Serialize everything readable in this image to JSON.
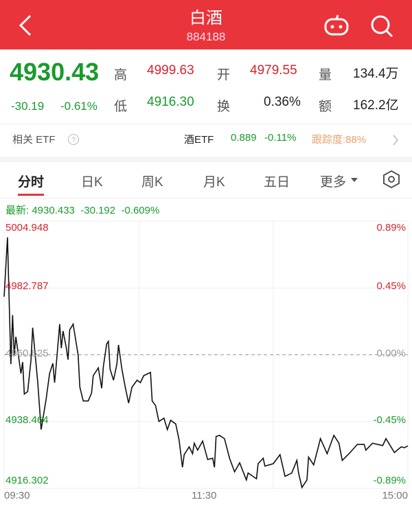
{
  "header": {
    "title": "白酒",
    "code": "884188",
    "back_icon": "chevron-left-icon",
    "robot_icon": "robot-icon",
    "search_icon": "search-icon",
    "color": "#e9343b"
  },
  "quote": {
    "price": "4930.43",
    "change": "-30.19",
    "change_pct": "-0.61%",
    "high_label": "高",
    "high": "4999.63",
    "open_label": "开",
    "open": "4979.55",
    "volume_label": "量",
    "volume": "134.4万",
    "low_label": "低",
    "low": "4916.30",
    "turnover_label": "换",
    "turnover": "0.36%",
    "amount_label": "额",
    "amount": "162.2亿"
  },
  "etf": {
    "label": "相关 ETF",
    "name": "酒ETF",
    "price": "0.889",
    "change": "-0.11%",
    "tracking": "跟踪度:88%"
  },
  "tabs": [
    {
      "label": "分时",
      "active": true
    },
    {
      "label": "日K"
    },
    {
      "label": "周K"
    },
    {
      "label": "月K"
    },
    {
      "label": "五日"
    },
    {
      "label": "更多"
    }
  ],
  "latest": "最新: 4930.433  -30.192  -0.609%",
  "chart_data": {
    "type": "line",
    "y_left_ticks": [
      "5004.948",
      "4982.787",
      "4960.625",
      "4938.464",
      "4916.302"
    ],
    "y_right_ticks": [
      "0.89%",
      "0.45%",
      "0.00%",
      "-0.45%",
      "-0.89%"
    ],
    "x_ticks": [
      "09:30",
      "11:30",
      "15:00"
    ],
    "ylim": [
      4916.302,
      5004.948
    ],
    "prev_close": 4960.625,
    "colors": {
      "up": "#d6242e",
      "down": "#1a9a2e",
      "line": "#111111"
    },
    "x": [
      "09:30",
      "09:32",
      "09:34",
      "09:35",
      "09:36",
      "09:37",
      "09:40",
      "09:41",
      "09:42",
      "09:44",
      "09:46",
      "09:47",
      "09:50",
      "09:52",
      "09:55",
      "09:57",
      "09:59",
      "10:00",
      "10:01",
      "10:03",
      "10:04",
      "10:05",
      "10:07",
      "10:08",
      "10:09",
      "10:11",
      "10:14",
      "10:15",
      "10:17",
      "10:20",
      "10:22",
      "10:23",
      "10:26",
      "10:28",
      "10:29",
      "10:31",
      "10:32",
      "10:33",
      "10:35",
      "10:37",
      "10:38",
      "10:40",
      "10:42",
      "10:44",
      "10:46",
      "10:49",
      "10:51",
      "10:53",
      "10:57",
      "10:58",
      "11:00",
      "11:02",
      "11:05",
      "11:07",
      "11:09",
      "11:12",
      "11:14",
      "11:16",
      "11:17",
      "11:20",
      "11:22",
      "11:23",
      "11:25",
      "11:28",
      "13:01",
      "13:04",
      "13:05",
      "13:06",
      "13:08",
      "13:11",
      "13:14",
      "13:17",
      "13:20",
      "13:24",
      "13:25",
      "13:30",
      "13:31",
      "13:34",
      "13:35",
      "13:40",
      "13:44",
      "13:47",
      "13:51",
      "13:54",
      "13:55",
      "13:57",
      "14:00",
      "14:01",
      "14:04",
      "14:07",
      "14:08",
      "14:12",
      "14:16",
      "14:19",
      "14:21",
      "14:25",
      "14:30",
      "14:34",
      "14:35",
      "14:39",
      "14:45",
      "14:47",
      "14:52",
      "14:56",
      "14:58",
      "15:00"
    ],
    "values": [
      4979.9,
      4999.6,
      4957.5,
      4973.8,
      4960.5,
      4966.6,
      4954.4,
      4958.2,
      4947.6,
      4948.4,
      4959.0,
      4969.6,
      4951.4,
      4935.8,
      4946.1,
      4954.4,
      4957.8,
      4951.4,
      4957.5,
      4970.8,
      4962.8,
      4968.5,
      4962.8,
      4959.0,
      4968.9,
      4970.8,
      4960.5,
      4949.9,
      4945.3,
      4945.3,
      4948.0,
      4953.7,
      4956.3,
      4949.5,
      4956.7,
      4964.3,
      4965.1,
      4955.9,
      4952.2,
      4957.5,
      4963.9,
      4955.9,
      4949.9,
      4944.6,
      4949.9,
      4952.2,
      4951.4,
      4953.7,
      4954.8,
      4945.3,
      4943.8,
      4938.5,
      4939.6,
      4935.8,
      4938.9,
      4937.7,
      4932.4,
      4923.3,
      4927.5,
      4930.1,
      4927.8,
      4931.3,
      4929.0,
      4932.0,
      4925.9,
      4926.3,
      4923.3,
      4933.5,
      4933.9,
      4932.8,
      4926.3,
      4921.8,
      4924.8,
      4919.1,
      4921.4,
      4919.5,
      4924.5,
      4926.3,
      4923.7,
      4924.5,
      4927.5,
      4920.3,
      4921.4,
      4925.6,
      4921.4,
      4916.6,
      4919.1,
      4926.7,
      4924.1,
      4930.5,
      4932.8,
      4927.8,
      4933.9,
      4931.3,
      4925.6,
      4927.8,
      4930.9,
      4930.9,
      4929.0,
      4931.3,
      4930.5,
      4932.8,
      4928.2,
      4930.1,
      4929.8,
      4930.4
    ]
  }
}
